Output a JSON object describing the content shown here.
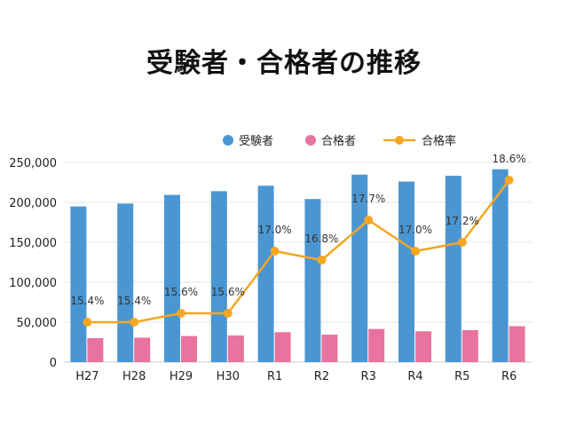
{
  "chart_data": {
    "type": "bar",
    "title": "受験者・合格者の推移",
    "categories": [
      "H27",
      "H28",
      "H29",
      "H30",
      "R1",
      "R2",
      "R3",
      "R4",
      "R5",
      "R6"
    ],
    "series": [
      {
        "name": "受験者",
        "type": "bar",
        "color": "#4a96d3",
        "values": [
          194926,
          198463,
          209354,
          213993,
          220797,
          204163,
          234714,
          226048,
          233276,
          241436
        ]
      },
      {
        "name": "合格者",
        "type": "bar",
        "color": "#e8739e",
        "values": [
          30028,
          30589,
          32644,
          33360,
          37481,
          34338,
          41471,
          38525,
          40025,
          44992
        ]
      },
      {
        "name": "合格率",
        "type": "line",
        "color": "#f5a623",
        "axis": "right",
        "values": [
          15.4,
          15.4,
          15.6,
          15.6,
          17.0,
          16.8,
          17.7,
          17.0,
          17.2,
          18.6
        ],
        "labels": [
          "15.4%",
          "15.4%",
          "15.6%",
          "15.6%",
          "17.0%",
          "16.8%",
          "17.7%",
          "17.0%",
          "17.2%",
          "18.6%"
        ]
      }
    ],
    "y_ticks": [
      "0",
      "50,000",
      "100,000",
      "150,000",
      "200,000",
      "250,000"
    ],
    "ylim": [
      0,
      250000
    ],
    "y2lim": [
      14.5,
      19.0
    ],
    "legend_position": "top-right",
    "grid": true
  }
}
